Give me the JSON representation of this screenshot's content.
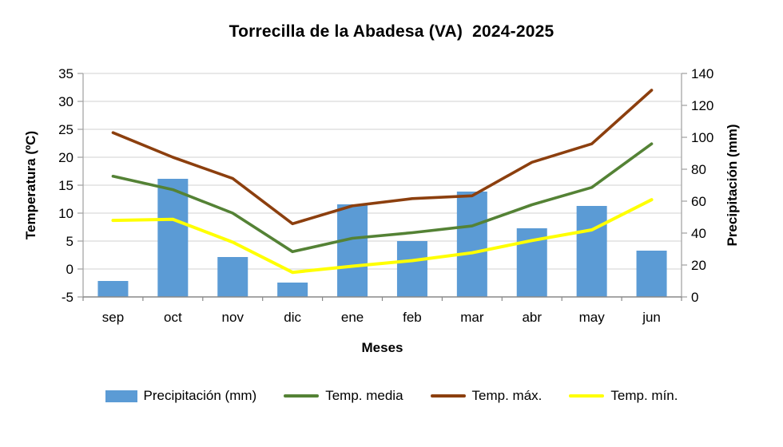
{
  "title": "Torrecilla de la Abadesa (VA)  2024-2025",
  "chart_data": {
    "type": "combo",
    "categories": [
      "sep",
      "oct",
      "nov",
      "dic",
      "ene",
      "feb",
      "mar",
      "abr",
      "may",
      "jun"
    ],
    "bar_series": {
      "name": "Precipitación (mm)",
      "axis": "right",
      "values": [
        10,
        74,
        25,
        9,
        58,
        35,
        66,
        43,
        57,
        29
      ]
    },
    "line_series": [
      {
        "name": "Temp. media",
        "axis": "left",
        "values": [
          16.6,
          14.2,
          10.0,
          3.1,
          5.5,
          6.5,
          7.7,
          11.5,
          14.6,
          22.4
        ]
      },
      {
        "name": "Temp. máx.",
        "axis": "left",
        "values": [
          24.4,
          20.0,
          16.2,
          8.1,
          11.3,
          12.6,
          13.1,
          19.1,
          22.4,
          32.0
        ]
      },
      {
        "name": "Temp. mín.",
        "axis": "left",
        "values": [
          8.7,
          8.9,
          4.8,
          -0.6,
          0.5,
          1.5,
          2.9,
          5.1,
          7.0,
          12.4
        ]
      }
    ],
    "left_axis": {
      "title": "Temperatura (ºC)",
      "min": -5,
      "max": 35,
      "step": 5,
      "ticks": [
        35,
        30,
        25,
        20,
        15,
        10,
        5,
        0,
        -5
      ]
    },
    "right_axis": {
      "title": "Precipitación (mm)",
      "min": 0,
      "max": 140,
      "step": 20,
      "ticks": [
        140,
        120,
        100,
        80,
        60,
        40,
        20,
        0
      ]
    },
    "xlabel": "Meses",
    "grid": true,
    "legend_position": "bottom"
  },
  "legend": [
    {
      "label": "Precipitación (mm)",
      "swatch": "rect",
      "color": "#5B9BD5"
    },
    {
      "label": "Temp. media",
      "swatch": "line",
      "color": "#548235"
    },
    {
      "label": "Temp. máx.",
      "swatch": "line",
      "color": "#8C3F0E"
    },
    {
      "label": "Temp. mín.",
      "swatch": "line",
      "color": "#FFFF00"
    }
  ],
  "colors": {
    "bar": "#5B9BD5",
    "temp_media": "#548235",
    "temp_max": "#8C3F0E",
    "temp_min": "#FFFF00",
    "gridline": "#D9D9D9",
    "axis_line": "#A6A6A6",
    "bottom_axis": "#898989",
    "text": "#000000"
  }
}
